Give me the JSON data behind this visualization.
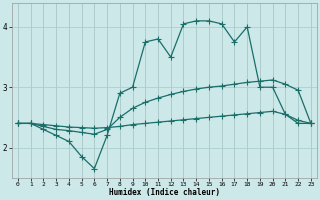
{
  "xlabel": "Humidex (Indice chaleur)",
  "bg_color": "#cce8e8",
  "grid_color": "#aacfcf",
  "line_color": "#1a6e6a",
  "x": [
    0,
    1,
    2,
    3,
    4,
    5,
    6,
    7,
    8,
    9,
    10,
    11,
    12,
    13,
    14,
    15,
    16,
    17,
    18,
    19,
    20,
    21,
    22,
    23
  ],
  "line_jagged": [
    2.4,
    2.4,
    2.3,
    2.2,
    2.1,
    1.85,
    1.65,
    2.2,
    2.9,
    3.0,
    3.75,
    3.8,
    3.5,
    4.05,
    4.1,
    4.1,
    4.05,
    3.75,
    4.0,
    3.0,
    3.0,
    2.55,
    2.4,
    2.4
  ],
  "line_smooth": [
    2.4,
    2.4,
    2.35,
    2.3,
    2.28,
    2.25,
    2.22,
    2.3,
    2.5,
    2.65,
    2.75,
    2.82,
    2.88,
    2.93,
    2.97,
    3.0,
    3.02,
    3.05,
    3.08,
    3.1,
    3.12,
    3.05,
    2.95,
    2.4
  ],
  "line_flat": [
    2.4,
    2.4,
    2.38,
    2.36,
    2.34,
    2.33,
    2.32,
    2.33,
    2.35,
    2.38,
    2.4,
    2.42,
    2.44,
    2.46,
    2.48,
    2.5,
    2.52,
    2.54,
    2.56,
    2.58,
    2.6,
    2.55,
    2.45,
    2.4
  ],
  "ylim": [
    1.5,
    4.4
  ],
  "yticks": [
    2,
    3,
    4
  ],
  "xlim": [
    -0.5,
    23.5
  ],
  "xticks": [
    0,
    1,
    2,
    3,
    4,
    5,
    6,
    7,
    8,
    9,
    10,
    11,
    12,
    13,
    14,
    15,
    16,
    17,
    18,
    19,
    20,
    21,
    22,
    23
  ]
}
